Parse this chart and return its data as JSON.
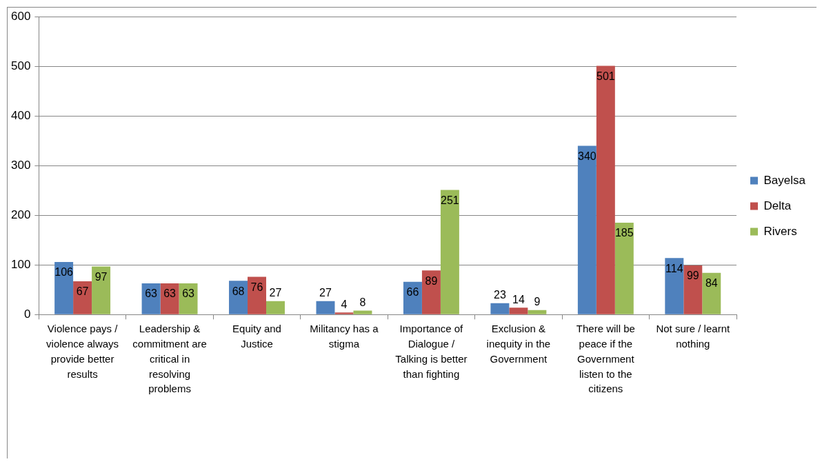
{
  "chart_data": {
    "type": "bar",
    "categories": [
      "Violence pays / violence always provide better results",
      "Leadership & commitment are critical in resolving problems",
      "Equity and Justice",
      "Militancy has a stigma",
      "Importance of Dialogue / Talking is better than fighting",
      "Exclusion & inequity in the Government",
      "There will be peace if the Government listen to the citizens",
      "Not sure / learnt nothing"
    ],
    "series": [
      {
        "name": "Bayelsa",
        "color": "#4f81bd",
        "values": [
          106,
          63,
          68,
          27,
          66,
          23,
          340,
          114
        ]
      },
      {
        "name": "Delta",
        "color": "#c0504d",
        "values": [
          67,
          63,
          76,
          4,
          89,
          14,
          501,
          99
        ]
      },
      {
        "name": "Rivers",
        "color": "#9bbb59",
        "values": [
          97,
          63,
          27,
          8,
          251,
          9,
          185,
          84
        ]
      }
    ],
    "ylim": [
      0,
      600
    ],
    "yticks": [
      0,
      100,
      200,
      300,
      400,
      500,
      600
    ],
    "grid": "y",
    "legend": "right",
    "data_labels": true
  }
}
